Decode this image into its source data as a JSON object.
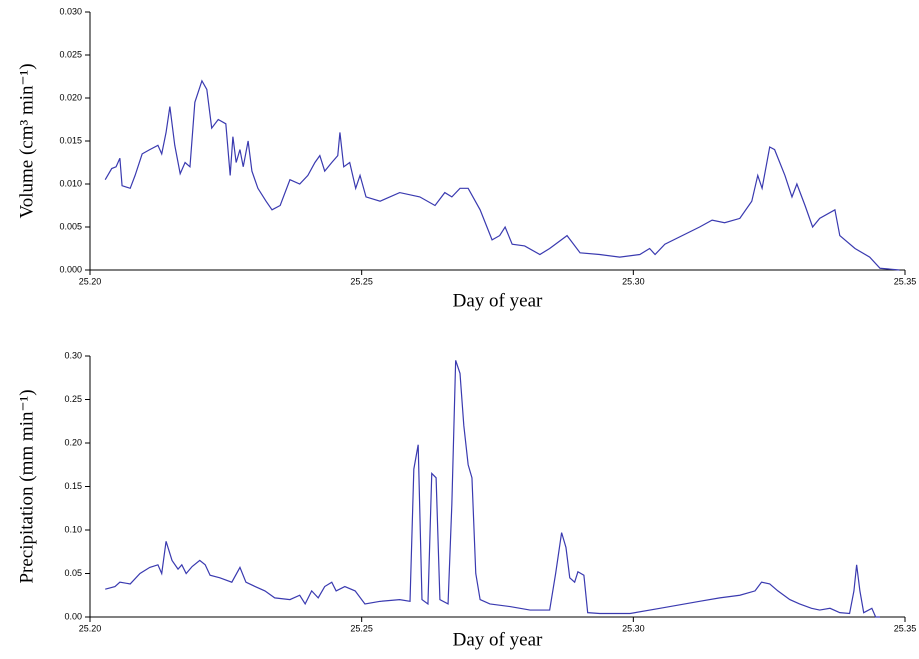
{
  "chart_data": [
    {
      "type": "line",
      "xlabel": "Day of year",
      "ylabel": "Volume (cm³ min⁻¹)",
      "xlim": [
        25.2,
        25.35
      ],
      "xticks": [
        {
          "value": 25.2,
          "label": "25.20"
        },
        25.25,
        {
          "value": 25.3,
          "label": "25.30"
        },
        25.35
      ],
      "ylim": [
        0,
        0.03
      ],
      "yticks": [
        {
          "value": 0,
          "label": "0.000"
        },
        {
          "value": 0.005,
          "label": "0.005"
        },
        {
          "value": 0.01,
          "label": "0.010"
        },
        {
          "value": 0.015,
          "label": "0.015"
        },
        {
          "value": 0.02,
          "label": "0.020"
        },
        {
          "value": 0.025,
          "label": "0.025"
        },
        {
          "value": 0.03,
          "label": "0.030"
        }
      ],
      "color": "#3a3ab0",
      "x": [
        25.2028,
        25.204,
        25.2048,
        25.2055,
        25.2059,
        25.2074,
        25.2083,
        25.2096,
        25.211,
        25.2125,
        25.2132,
        25.214,
        25.2147,
        25.2156,
        25.2166,
        25.2175,
        25.2184,
        25.2193,
        25.2206,
        25.2215,
        25.2224,
        25.2236,
        25.225,
        25.2258,
        25.2263,
        25.2269,
        25.2276,
        25.2282,
        25.2291,
        25.2298,
        25.2309,
        25.2324,
        25.2335,
        25.235,
        25.2368,
        25.2386,
        25.2401,
        25.2414,
        25.2423,
        25.2432,
        25.2445,
        25.2456,
        25.246,
        25.2467,
        25.2478,
        25.2489,
        25.2497,
        25.2508,
        25.2534,
        25.257,
        25.2607,
        25.2635,
        25.2653,
        25.2666,
        25.2681,
        25.2696,
        25.2718,
        25.274,
        25.2754,
        25.2764,
        25.2777,
        25.28,
        25.2828,
        25.2846,
        25.2878,
        25.2902,
        25.2938,
        25.2975,
        25.3012,
        25.303,
        25.304,
        25.3058,
        25.3122,
        25.3145,
        25.3168,
        25.3196,
        25.3218,
        25.3229,
        25.3237,
        25.3251,
        25.326,
        25.3279,
        25.3292,
        25.3301,
        25.3316,
        25.333,
        25.3343,
        25.3371,
        25.338,
        25.3408,
        25.3435,
        25.3454,
        25.349
      ],
      "values": [
        0.0105,
        0.0118,
        0.012,
        0.013,
        0.0098,
        0.0095,
        0.011,
        0.0135,
        0.014,
        0.0145,
        0.0135,
        0.016,
        0.019,
        0.0145,
        0.0112,
        0.0125,
        0.012,
        0.0195,
        0.022,
        0.021,
        0.0165,
        0.0175,
        0.017,
        0.011,
        0.0155,
        0.0125,
        0.014,
        0.012,
        0.015,
        0.0115,
        0.0095,
        0.008,
        0.007,
        0.0075,
        0.0105,
        0.01,
        0.011,
        0.0125,
        0.0133,
        0.0115,
        0.0125,
        0.0133,
        0.016,
        0.012,
        0.0125,
        0.0095,
        0.011,
        0.0085,
        0.008,
        0.009,
        0.0085,
        0.0075,
        0.009,
        0.0085,
        0.0095,
        0.0095,
        0.007,
        0.0035,
        0.004,
        0.005,
        0.003,
        0.0028,
        0.0018,
        0.0025,
        0.004,
        0.002,
        0.0018,
        0.0015,
        0.0018,
        0.0025,
        0.0018,
        0.003,
        0.005,
        0.0058,
        0.0055,
        0.006,
        0.008,
        0.011,
        0.0095,
        0.0143,
        0.014,
        0.011,
        0.0085,
        0.01,
        0.0075,
        0.005,
        0.006,
        0.007,
        0.004,
        0.0025,
        0.0015,
        0.0002,
        0
      ]
    },
    {
      "type": "line",
      "xlabel": "Day of year",
      "ylabel": "Precipitation (mm min⁻¹)",
      "xlim": [
        25.2,
        25.35
      ],
      "xticks": [
        {
          "value": 25.2,
          "label": "25.20"
        },
        25.25,
        {
          "value": 25.3,
          "label": "25.30"
        },
        25.35
      ],
      "ylim": [
        0,
        0.3
      ],
      "yticks": [
        {
          "value": 0,
          "label": "0.00"
        },
        0.05,
        {
          "value": 0.1,
          "label": "0.10"
        },
        0.15,
        {
          "value": 0.2,
          "label": "0.20"
        },
        0.25,
        {
          "value": 0.3,
          "label": "0.30"
        }
      ],
      "color": "#3a3ab0",
      "x": [
        25.2028,
        25.2046,
        25.2055,
        25.2074,
        25.2092,
        25.211,
        25.2125,
        25.2132,
        25.214,
        25.2151,
        25.2162,
        25.2169,
        25.2177,
        25.2188,
        25.2202,
        25.2212,
        25.2221,
        25.2239,
        25.2261,
        25.2276,
        25.2287,
        25.2304,
        25.2322,
        25.234,
        25.2368,
        25.2386,
        25.2396,
        25.2408,
        25.242,
        25.2432,
        25.2445,
        25.2453,
        25.2469,
        25.2488,
        25.2506,
        25.2534,
        25.257,
        25.2589,
        25.2596,
        25.2604,
        25.2611,
        25.2622,
        25.2629,
        25.2637,
        25.2644,
        25.2659,
        25.2666,
        25.2673,
        25.2681,
        25.2688,
        25.2696,
        25.2703,
        25.271,
        25.2718,
        25.2736,
        25.2773,
        25.281,
        25.2846,
        25.2857,
        25.2868,
        25.2876,
        25.2883,
        25.2892,
        25.2898,
        25.2909,
        25.2916,
        25.2938,
        25.2994,
        25.3049,
        25.3122,
        25.3159,
        25.3196,
        25.3224,
        25.3236,
        25.3251,
        25.3266,
        25.3288,
        25.3306,
        25.3328,
        25.3343,
        25.3362,
        25.338,
        25.3398,
        25.3406,
        25.3411,
        25.3417,
        25.3424,
        25.3439,
        25.3446,
        25.3454
      ],
      "values": [
        0.032,
        0.035,
        0.04,
        0.038,
        0.05,
        0.057,
        0.06,
        0.05,
        0.087,
        0.065,
        0.055,
        0.06,
        0.05,
        0.058,
        0.065,
        0.06,
        0.048,
        0.045,
        0.04,
        0.057,
        0.04,
        0.035,
        0.03,
        0.022,
        0.02,
        0.025,
        0.015,
        0.03,
        0.022,
        0.035,
        0.04,
        0.03,
        0.035,
        0.03,
        0.015,
        0.018,
        0.02,
        0.018,
        0.17,
        0.198,
        0.02,
        0.015,
        0.165,
        0.16,
        0.02,
        0.015,
        0.13,
        0.295,
        0.28,
        0.22,
        0.175,
        0.16,
        0.05,
        0.02,
        0.015,
        0.012,
        0.008,
        0.008,
        0.05,
        0.097,
        0.08,
        0.045,
        0.04,
        0.052,
        0.048,
        0.005,
        0.004,
        0.004,
        0.01,
        0.018,
        0.022,
        0.025,
        0.03,
        0.04,
        0.038,
        0.03,
        0.02,
        0.015,
        0.01,
        0.008,
        0.01,
        0.005,
        0.004,
        0.03,
        0.06,
        0.03,
        0.005,
        0.01,
        0,
        0
      ]
    }
  ]
}
